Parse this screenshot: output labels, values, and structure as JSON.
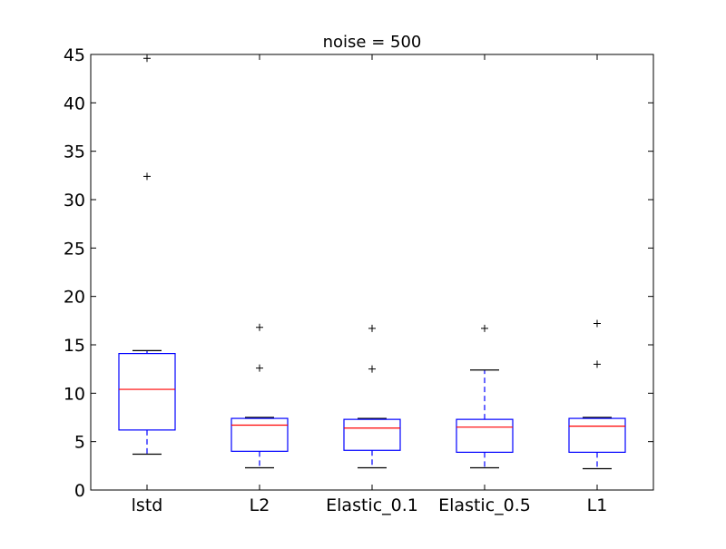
{
  "chart_data": {
    "type": "boxplot",
    "title": "noise = 500",
    "xlabel": "",
    "ylabel": "",
    "ylim": [
      0,
      45
    ],
    "yticks": [
      0,
      5,
      10,
      15,
      20,
      25,
      30,
      35,
      40,
      45
    ],
    "grid": false,
    "categories": [
      "lstd",
      "L2",
      "Elastic_0.1",
      "Elastic_0.5",
      "L1"
    ],
    "boxes": [
      {
        "category": "lstd",
        "whisker_low": 3.7,
        "q1": 6.2,
        "median": 10.4,
        "q3": 14.1,
        "whisker_high": 14.4,
        "outliers": [
          32.4,
          44.6
        ]
      },
      {
        "category": "L2",
        "whisker_low": 2.3,
        "q1": 4.0,
        "median": 6.7,
        "q3": 7.4,
        "whisker_high": 7.5,
        "outliers": [
          12.6,
          16.8
        ]
      },
      {
        "category": "Elastic_0.1",
        "whisker_low": 2.3,
        "q1": 4.1,
        "median": 6.4,
        "q3": 7.3,
        "whisker_high": 7.4,
        "outliers": [
          12.5,
          16.7
        ]
      },
      {
        "category": "Elastic_0.5",
        "whisker_low": 2.3,
        "q1": 3.9,
        "median": 6.5,
        "q3": 7.3,
        "whisker_high": 12.4,
        "outliers": [
          16.7
        ]
      },
      {
        "category": "L1",
        "whisker_low": 2.2,
        "q1": 3.9,
        "median": 6.6,
        "q3": 7.4,
        "whisker_high": 7.5,
        "outliers": [
          13.0,
          17.2
        ]
      }
    ],
    "colors": {
      "box": "#0000ff",
      "median": "#ff0000",
      "whisker_cap": "#000000",
      "outlier": "#000000",
      "axes": "#000000"
    }
  }
}
